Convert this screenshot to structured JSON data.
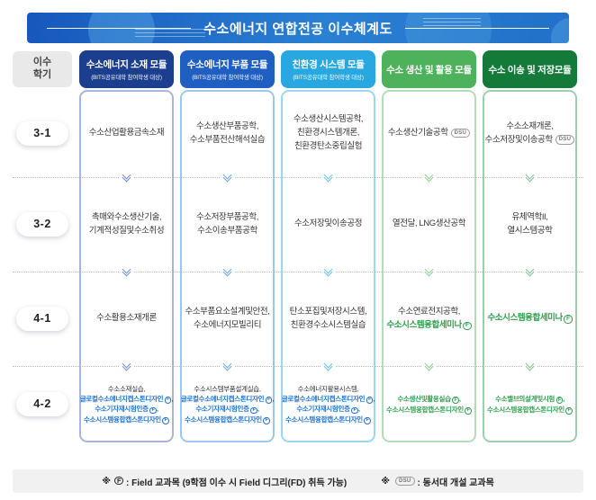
{
  "title": "수소에너지 연합전공 이수체계도",
  "colors": {
    "module_colors": [
      "#1c3e8f",
      "#1e5fc1",
      "#29a7e1",
      "#4eb25c",
      "#137a3a"
    ],
    "module_border_colors": [
      "#aab4d8",
      "#9fc6ee",
      "#9bd7f3",
      "#b5dcba",
      "#9fceae"
    ],
    "module_chevron_colors": [
      "#6f8fd8",
      "#6fa8e8",
      "#63c3ef",
      "#8fd097",
      "#7fc092"
    ],
    "course_blue": "#1d72d2",
    "course_green": "#2f9e4e"
  },
  "semester_header": {
    "line1": "이수",
    "line2": "학기"
  },
  "modules": [
    {
      "label": "수소에너지 소재 모듈",
      "sublabel": "(BITS공유대학 참여학생 대상)"
    },
    {
      "label": "수소에너지 부품 모듈",
      "sublabel": "(BITS공유대학 참여학생 대상)"
    },
    {
      "label": "친환경 시스템 모듈",
      "sublabel": "(BITS공유대학 참여학생 대상)"
    },
    {
      "label": "수소 생산 및 활용 모듈",
      "sublabel": ""
    },
    {
      "label": "수소 이송 및 저장모듈",
      "sublabel": ""
    }
  ],
  "rows": [
    {
      "semester": "3-1",
      "small": false,
      "cells": [
        {
          "lines": [
            {
              "text": "수소산업활용금속소재"
            }
          ]
        },
        {
          "lines": [
            {
              "text": "수소생산부품공학,"
            },
            {
              "text": "수소부품전산해석실습"
            }
          ]
        },
        {
          "lines": [
            {
              "text": "수소생산시스템공학,"
            },
            {
              "text": "친환경시스템개론,"
            },
            {
              "text": "친환경탄소중립실험"
            }
          ]
        },
        {
          "lines": [
            {
              "text": "수소생산기술공학",
              "badge": "DSU"
            }
          ]
        },
        {
          "lines": [
            {
              "text": "수소소재개론,"
            },
            {
              "text": "수소저장및이송공학",
              "badge": "DSU"
            }
          ]
        }
      ]
    },
    {
      "semester": "3-2",
      "small": false,
      "cells": [
        {
          "lines": [
            {
              "text": "촉매와수소생산기술,"
            },
            {
              "text": "기계적성질및수소취성"
            }
          ]
        },
        {
          "lines": [
            {
              "text": "수소저장부품공학,"
            },
            {
              "text": "수소이송부품공학"
            }
          ]
        },
        {
          "lines": [
            {
              "text": "수소저장및이송공정"
            }
          ]
        },
        {
          "lines": [
            {
              "text": "열전달, LNG생산공학"
            }
          ]
        },
        {
          "lines": [
            {
              "text": "유체역학II,"
            },
            {
              "text": "열시스템공학"
            }
          ]
        }
      ]
    },
    {
      "semester": "4-1",
      "small": false,
      "cells": [
        {
          "lines": [
            {
              "text": "수소활용소재개론"
            }
          ]
        },
        {
          "lines": [
            {
              "text": "수소부품요소설계및안전,"
            },
            {
              "text": "수소에너지모빌리티"
            }
          ]
        },
        {
          "lines": [
            {
              "text": "탄소포집및저장시스템,"
            },
            {
              "text": "친환경수소시스템실습"
            }
          ]
        },
        {
          "lines": [
            {
              "text": "수소연료전지공학,"
            },
            {
              "text": "수소시스템융합세미나Ⓕ",
              "style": "green"
            }
          ]
        },
        {
          "lines": [
            {
              "text": "수소시스템융합세미나Ⓕ",
              "style": "green"
            }
          ]
        }
      ]
    },
    {
      "semester": "4-2",
      "small": true,
      "cells": [
        {
          "lines": [
            {
              "text": "수소소재실습,"
            },
            {
              "text": "글로컬수소에너지캡스톤디자인Ⓕ,",
              "style": "blue"
            },
            {
              "text": "수소기자재시험인증Ⓕ,",
              "style": "blue"
            },
            {
              "text": "수소시스템융합캡스톤디자인Ⓕ",
              "style": "blue"
            }
          ]
        },
        {
          "lines": [
            {
              "text": "수소시스템부품설계실습,"
            },
            {
              "text": "글로컬수소에너지캡스톤디자인Ⓕ,",
              "style": "blue"
            },
            {
              "text": "수소기자재시험인증Ⓕ,",
              "style": "blue"
            },
            {
              "text": "수소시스템융합캡스톤디자인Ⓕ",
              "style": "blue"
            }
          ]
        },
        {
          "lines": [
            {
              "text": "수소에너지활용시스템,"
            },
            {
              "text": "글로컬수소에너지캡스톤디자인Ⓕ,",
              "style": "blue"
            },
            {
              "text": "수소기자재시험인증Ⓕ,",
              "style": "blue"
            },
            {
              "text": "수소시스템융합캡스톤디자인Ⓕ",
              "style": "blue"
            }
          ]
        },
        {
          "lines": [
            {
              "text": "수소생산및활용실습Ⓕ,",
              "style": "green"
            },
            {
              "text": "수소시스템융합캡스톤디자인Ⓕ",
              "style": "green"
            }
          ]
        },
        {
          "lines": [
            {
              "text": "수소밸브의설계및시험Ⓕ,",
              "style": "green"
            },
            {
              "text": "수소시스템융합캡스톤디자인Ⓕ",
              "style": "green"
            }
          ]
        }
      ]
    }
  ],
  "footer": {
    "note1": {
      "prefix": "※",
      "marker": "F",
      "text": ": Field 교과목 (9학점 이수 시 Field 디그리(FD) 취득 가능)"
    },
    "note2": {
      "prefix": "※",
      "marker": "DSU",
      "text": ": 동서대 개설 교과목"
    }
  }
}
